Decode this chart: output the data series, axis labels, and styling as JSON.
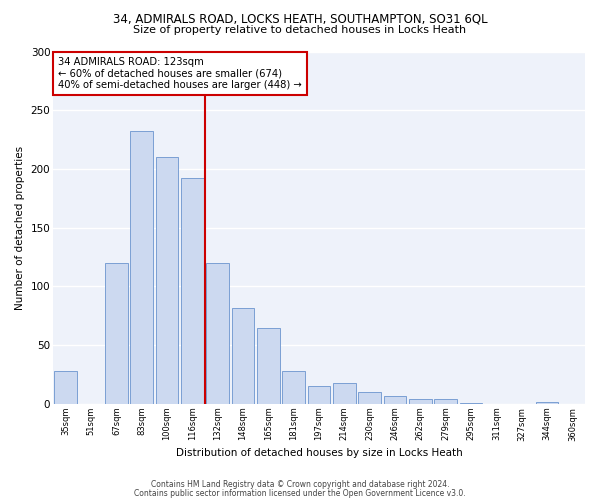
{
  "title1": "34, ADMIRALS ROAD, LOCKS HEATH, SOUTHAMPTON, SO31 6QL",
  "title2": "Size of property relative to detached houses in Locks Heath",
  "xlabel": "Distribution of detached houses by size in Locks Heath",
  "ylabel": "Number of detached properties",
  "bar_labels": [
    "35sqm",
    "51sqm",
    "67sqm",
    "83sqm",
    "100sqm",
    "116sqm",
    "132sqm",
    "148sqm",
    "165sqm",
    "181sqm",
    "197sqm",
    "214sqm",
    "230sqm",
    "246sqm",
    "262sqm",
    "279sqm",
    "295sqm",
    "311sqm",
    "327sqm",
    "344sqm",
    "360sqm"
  ],
  "bar_values": [
    28,
    0,
    120,
    232,
    210,
    192,
    120,
    82,
    65,
    28,
    15,
    18,
    10,
    7,
    4,
    4,
    1,
    0,
    0,
    2,
    0
  ],
  "bar_color": "#ccd9f0",
  "bar_edge_color": "#7a9fd4",
  "vline_color": "#cc0000",
  "annotation_title": "34 ADMIRALS ROAD: 123sqm",
  "annotation_line1": "← 60% of detached houses are smaller (674)",
  "annotation_line2": "40% of semi-detached houses are larger (448) →",
  "annotation_box_color": "#ffffff",
  "annotation_box_edge": "#cc0000",
  "ylim": [
    0,
    300
  ],
  "yticks": [
    0,
    50,
    100,
    150,
    200,
    250,
    300
  ],
  "bg_color": "#eef2fa",
  "footer1": "Contains HM Land Registry data © Crown copyright and database right 2024.",
  "footer2": "Contains public sector information licensed under the Open Government Licence v3.0."
}
